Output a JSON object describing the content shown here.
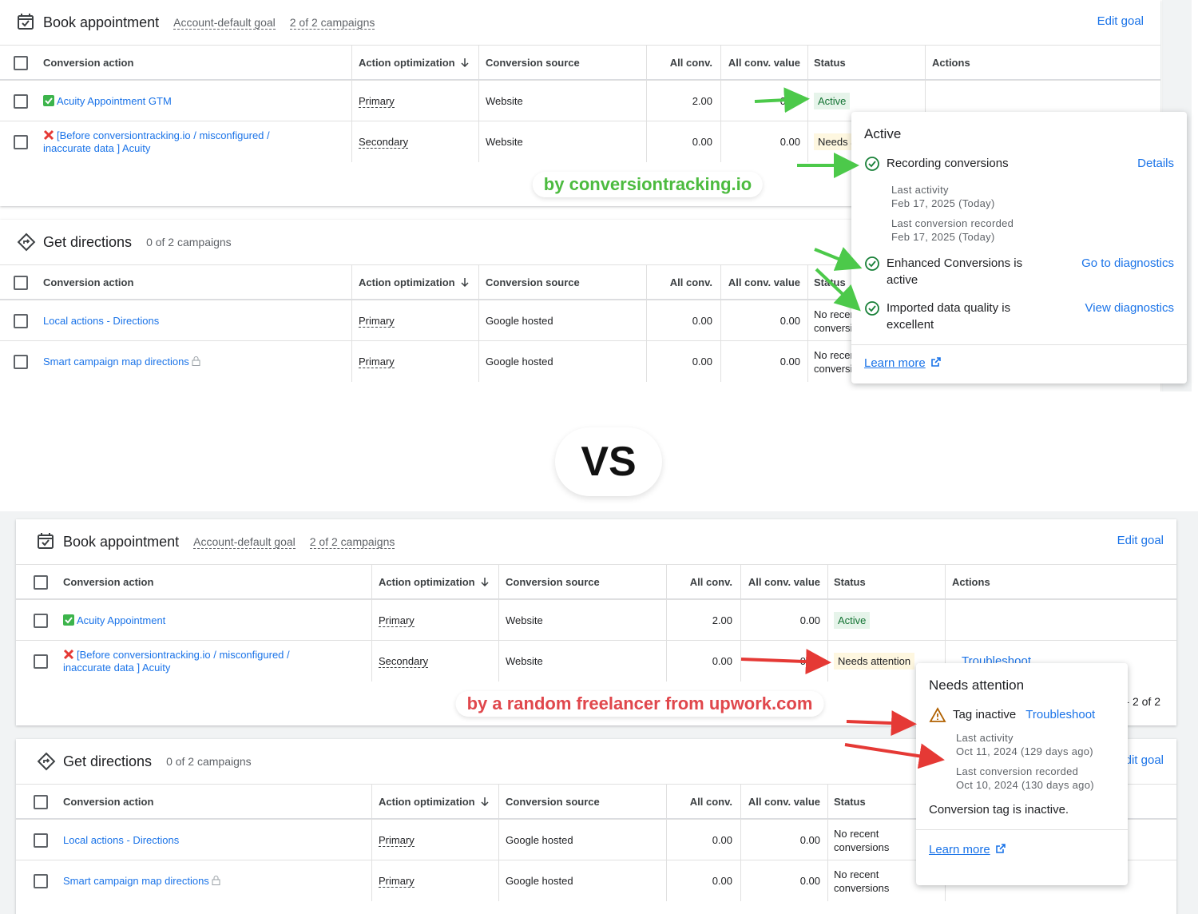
{
  "vs": "VS",
  "comparisons": [
    {
      "label": "by conversiontracking.io",
      "label_color": "#4cbb3f",
      "goals": [
        {
          "title": "Book appointment",
          "goal_type": "Account-default goal",
          "campaigns": "2 of 2 campaigns",
          "edit": "Edit goal",
          "columns": [
            "Conversion action",
            "Action optimization",
            "Conversion source",
            "All conv.",
            "All conv. value",
            "Status",
            "Actions"
          ],
          "rows": [
            {
              "icon": "check",
              "action": "Acuity Appointment GTM",
              "optimization": "Primary",
              "source": "Website",
              "conv": "2.00",
              "value": "0.00",
              "status": "Active",
              "status_style": "active"
            },
            {
              "icon": "cross",
              "action": "[Before conversiontracking.io / misconfigured / inaccurate data ] Acuity",
              "optimization": "Secondary",
              "source": "Website",
              "conv": "0.00",
              "value": "0.00",
              "status": "Needs attention",
              "status_style": "attention"
            }
          ]
        },
        {
          "title": "Get directions",
          "campaigns": "0 of 2 campaigns",
          "columns": [
            "Conversion action",
            "Action optimization",
            "Conversion source",
            "All conv.",
            "All conv. value",
            "Status"
          ],
          "rows": [
            {
              "action": "Local actions - Directions",
              "optimization": "Primary",
              "source": "Google hosted",
              "conv": "0.00",
              "value": "0.00",
              "status": "No recent conversions",
              "status_style": "plain"
            },
            {
              "action": "Smart campaign map directions",
              "icon": "lock",
              "optimization": "Primary",
              "source": "Google hosted",
              "conv": "0.00",
              "value": "0.00",
              "status": "No recent conversions",
              "status_style": "plain"
            }
          ]
        }
      ],
      "popup": {
        "title": "Active",
        "items": [
          {
            "icon": "ok",
            "text": "Recording conversions",
            "link": "Details",
            "details": [
              {
                "label": "Last activity",
                "value": "Feb 17, 2025 (Today)"
              },
              {
                "label": "Last conversion recorded",
                "value": "Feb 17, 2025 (Today)"
              }
            ]
          },
          {
            "icon": "ok",
            "text": "Enhanced Conversions is active",
            "link": "Go to diagnostics"
          },
          {
            "icon": "ok",
            "text": "Imported data quality is excellent",
            "link": "View diagnostics"
          }
        ],
        "learn_more": "Learn more"
      }
    },
    {
      "label": "by a random freelancer from upwork.com",
      "label_color": "#e0474c",
      "goals": [
        {
          "title": "Book appointment",
          "goal_type": "Account-default goal",
          "campaigns": "2 of 2 campaigns",
          "edit": "Edit goal",
          "columns": [
            "Conversion action",
            "Action optimization",
            "Conversion source",
            "All conv.",
            "All conv. value",
            "Status",
            "Actions"
          ],
          "rows": [
            {
              "icon": "check",
              "action": "Acuity Appointment",
              "optimization": "Primary",
              "source": "Website",
              "conv": "2.00",
              "value": "0.00",
              "status": "Active",
              "status_style": "active"
            },
            {
              "icon": "cross",
              "action": "[Before conversiontracking.io / misconfigured / inaccurate data ] Acuity",
              "optimization": "Secondary",
              "source": "Website",
              "conv": "0.00",
              "value": "0.00",
              "status": "Needs attention",
              "status_style": "attention",
              "actions": "Troubleshoot"
            }
          ],
          "pagination": "1 - 2 of 2"
        },
        {
          "title": "Get directions",
          "campaigns": "0 of 2 campaigns",
          "edit": "Edit goal",
          "columns": [
            "Conversion action",
            "Action optimization",
            "Conversion source",
            "All conv.",
            "All conv. value",
            "Status"
          ],
          "rows": [
            {
              "action": "Local actions - Directions",
              "optimization": "Primary",
              "source": "Google hosted",
              "conv": "0.00",
              "value": "0.00",
              "status": "No recent conversions",
              "status_style": "plain"
            },
            {
              "action": "Smart campaign map directions",
              "icon": "lock",
              "optimization": "Primary",
              "source": "Google hosted",
              "conv": "0.00",
              "value": "0.00",
              "status": "No recent conversions",
              "status_style": "plain"
            }
          ]
        }
      ],
      "popup": {
        "title": "Needs attention",
        "items": [
          {
            "icon": "warning",
            "text": "Tag inactive",
            "link": "Troubleshoot",
            "details": [
              {
                "label": "Last activity",
                "value": "Oct 11, 2024 (129 days ago)"
              },
              {
                "label": "Last conversion recorded",
                "value": "Oct 10, 2024 (130 days ago)"
              }
            ]
          }
        ],
        "note": "Conversion tag is inactive.",
        "learn_more": "Learn more"
      }
    }
  ]
}
